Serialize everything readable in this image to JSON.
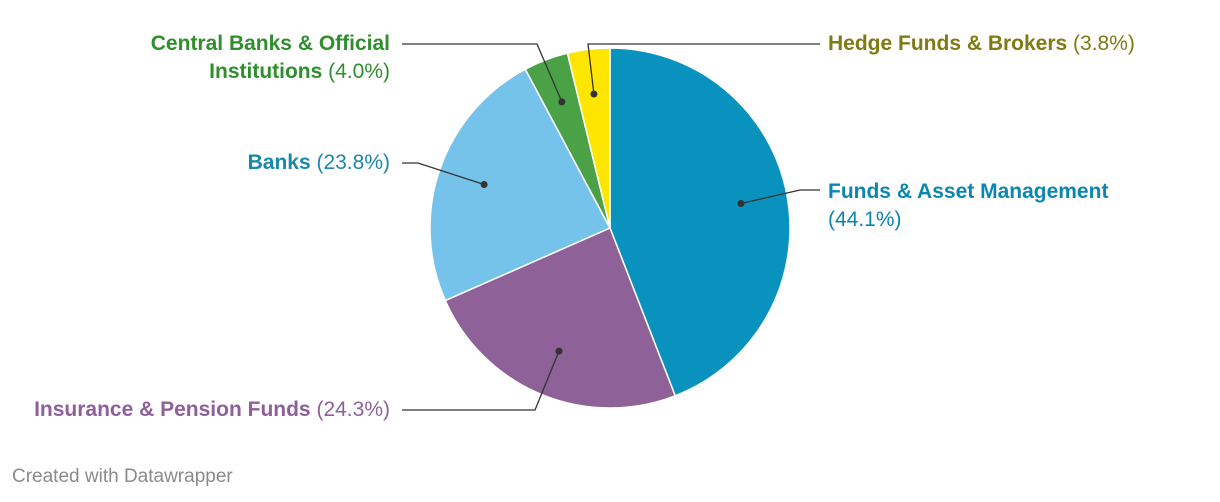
{
  "chart_data": {
    "type": "pie",
    "slices": [
      {
        "name": "Funds & Asset Management",
        "value": 44.1,
        "value_label": "(44.1%)",
        "color": "#0a92bf",
        "label_color": "#0b86b1"
      },
      {
        "name": "Insurance & Pension Funds",
        "value": 24.3,
        "value_label": "(24.3%)",
        "color": "#8e6199",
        "label_color": "#8e5f9b"
      },
      {
        "name": "Banks",
        "value": 23.8,
        "value_label": "(23.8%)",
        "color": "#75c2ea",
        "label_color": "#1a87ad"
      },
      {
        "name": "Central Banks & Official Institutions",
        "value": 4.0,
        "value_label": "(4.0%)",
        "color": "#4aa146",
        "label_color": "#2f8f2d"
      },
      {
        "name": "Hedge Funds & Brokers",
        "value": 3.8,
        "value_label": "(3.8%)",
        "color": "#ffe600",
        "label_color": "#7f7a12"
      }
    ],
    "legend": "none (direct labels)"
  },
  "footer": {
    "credit": "Created with Datawrapper"
  }
}
